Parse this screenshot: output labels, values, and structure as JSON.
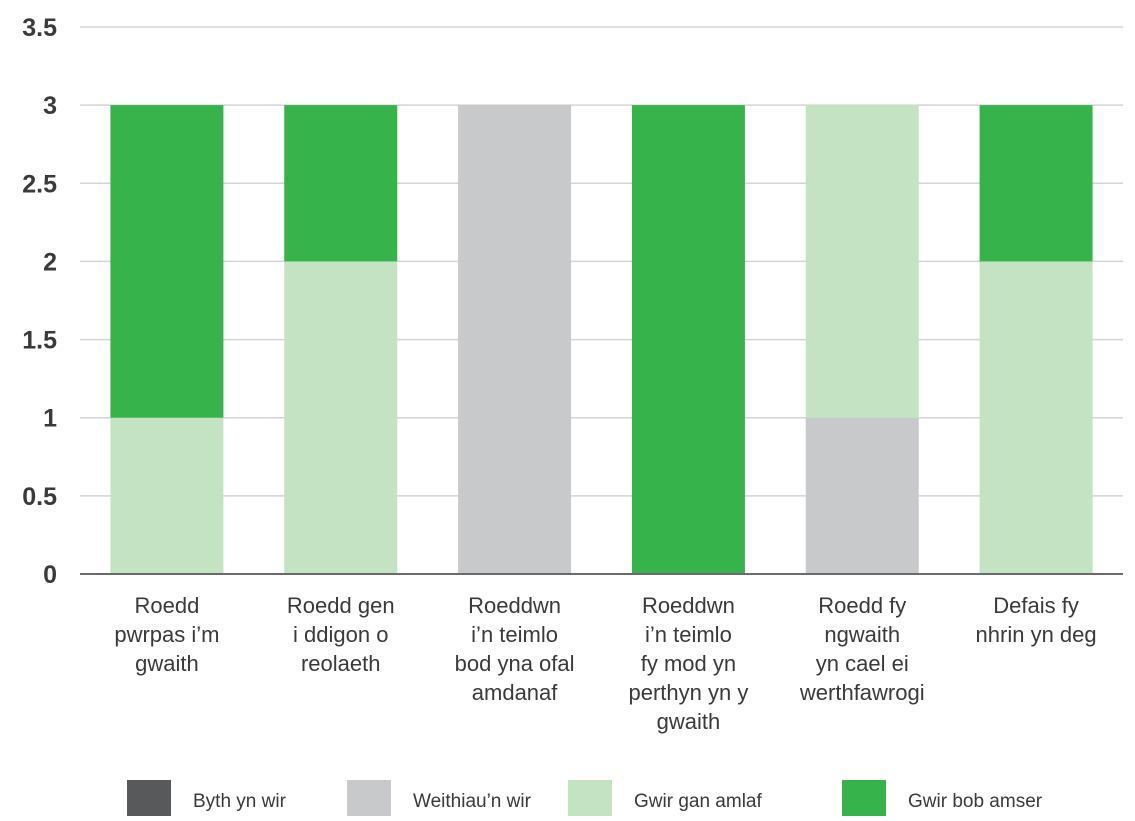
{
  "chart_data": {
    "type": "bar",
    "stacked": true,
    "title": "",
    "xlabel": "",
    "ylabel": "",
    "ylim": [
      0,
      3.5
    ],
    "yticks": [
      "0",
      "0.5",
      "1",
      "1.5",
      "2",
      "2.5",
      "3",
      "3.5"
    ],
    "grid": true,
    "legend_position": "bottom",
    "categories": [
      [
        "Roedd",
        "pwrpas i’m",
        "gwaith"
      ],
      [
        "Roedd gen",
        "i ddigon o",
        "reolaeth"
      ],
      [
        "Roeddwn",
        "i’n teimlo",
        "bod yna ofal",
        "amdanaf"
      ],
      [
        "Roeddwn",
        "i’n teimlo",
        "fy mod yn",
        "perthyn yn y",
        "gwaith"
      ],
      [
        "Roedd fy",
        "ngwaith",
        "yn cael ei",
        "werthfawrogi"
      ],
      [
        "Defais fy",
        "nhrin yn deg"
      ]
    ],
    "series": [
      {
        "name": "Byth yn wir",
        "color": "#58595b",
        "values": [
          0,
          0,
          0,
          0,
          0,
          0
        ]
      },
      {
        "name": "Weithiau’n wir",
        "color": "#c8c9cb",
        "values": [
          0,
          0,
          3,
          0,
          1,
          0
        ]
      },
      {
        "name": "Gwir gan amlaf",
        "color": "#c4e3c2",
        "values": [
          1,
          2,
          0,
          0,
          2,
          2
        ]
      },
      {
        "name": "Gwir bob amser",
        "color": "#36b34a",
        "values": [
          2,
          1,
          0,
          3,
          0,
          1
        ]
      }
    ]
  }
}
